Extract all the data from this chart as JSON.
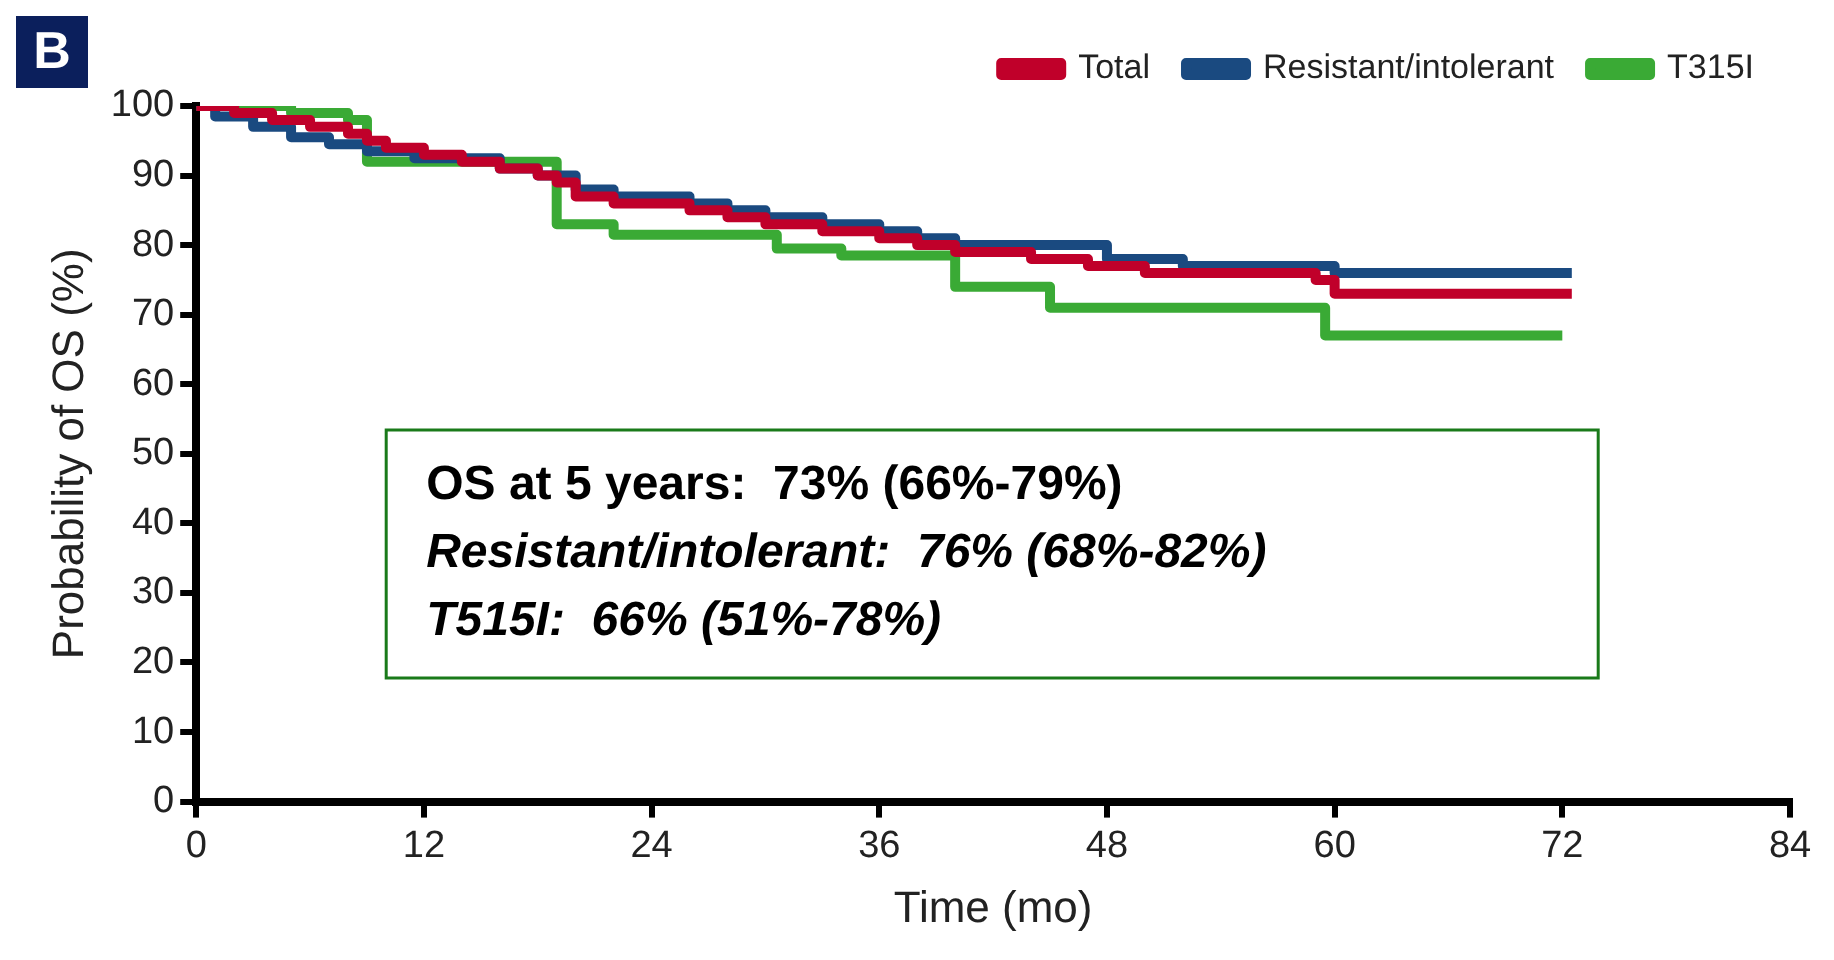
{
  "chart_data": {
    "type": "step",
    "xlabel": "Time (mo)",
    "ylabel": "Probability of OS (%)",
    "xlim": [
      0,
      84
    ],
    "xticks": [
      0,
      12,
      24,
      36,
      48,
      60,
      72,
      84
    ],
    "ylim": [
      0,
      100
    ],
    "yticks": [
      0,
      10,
      20,
      30,
      40,
      50,
      60,
      70,
      80,
      90,
      100
    ],
    "grid": false,
    "legend": "top right",
    "marker": "none",
    "line_style": "solid",
    "annotations": [
      "B",
      "OS at 5 years:  73% (66%-79%)",
      "Resistant/intolerant:  76% (68%-82%)",
      "T515I:  66% (51%-78%)"
    ],
    "series": [
      {
        "name": "Total",
        "color": "#c0002a",
        "x": [
          0,
          2,
          4,
          6,
          8,
          9,
          10,
          12,
          14,
          16,
          18,
          19,
          20,
          22,
          24,
          26,
          28,
          30,
          33,
          36,
          38,
          40,
          44,
          47,
          50,
          55,
          59,
          60,
          72.5
        ],
        "values": [
          100,
          99,
          98,
          97,
          96,
          95,
          94,
          93,
          92,
          91,
          90,
          89,
          87,
          86,
          86,
          85,
          84,
          83,
          82,
          81,
          80,
          79,
          78,
          77,
          76,
          76,
          75,
          73,
          73
        ]
      },
      {
        "name": "Resistant/intolerant",
        "color": "#1a4a80",
        "x": [
          0,
          1,
          3,
          5,
          7,
          9,
          11.5,
          16,
          18,
          20,
          22,
          24,
          26,
          28,
          30,
          33,
          36,
          38,
          40,
          44,
          48,
          52,
          60,
          66,
          72.5
        ],
        "values": [
          100,
          98.5,
          97,
          95.5,
          94.5,
          93.5,
          92.5,
          91,
          90,
          88,
          87,
          87,
          86,
          85,
          84,
          83,
          82,
          81,
          80,
          80,
          78,
          77,
          76,
          76,
          76
        ]
      },
      {
        "name": "T315I",
        "color": "#3aaa35",
        "x": [
          0,
          3,
          5,
          8,
          9,
          18.5,
          19,
          22,
          30.6,
          34,
          40,
          45,
          48,
          55,
          59.5,
          72
        ],
        "values": [
          100,
          100,
          99,
          98,
          92,
          92,
          83,
          81.5,
          79.5,
          78.5,
          74,
          71,
          71,
          71,
          67,
          67
        ]
      }
    ]
  }
}
